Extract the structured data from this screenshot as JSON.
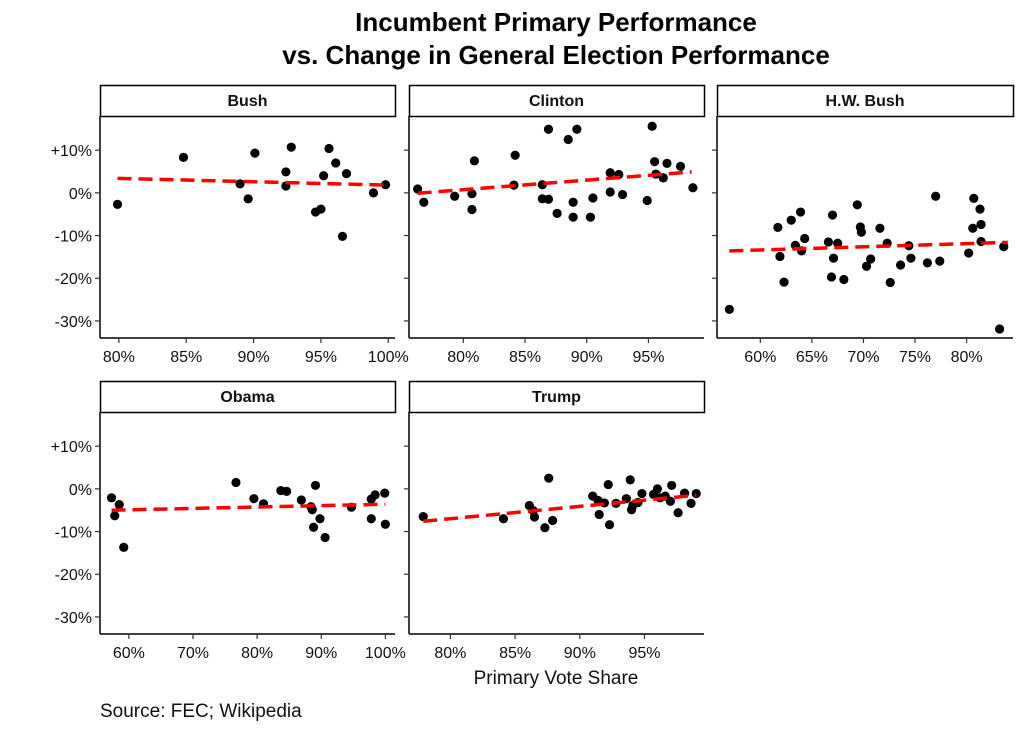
{
  "chart_data": {
    "type": "scatter",
    "title_lines": [
      "Incumbent Primary Performance",
      "vs. Change in General Election Performance"
    ],
    "xlabel": "Primary Vote Share",
    "ylabel": "",
    "caption": "Source: FEC; Wikipedia",
    "y_ticks": [
      10,
      0,
      -10,
      -20,
      -30
    ],
    "y_tick_labels": [
      "+10%",
      "0%",
      "-10%",
      "-20%",
      "-30%"
    ],
    "ylim": [
      -34,
      18
    ],
    "trend_color": "#ff0000",
    "point_color": "#000000",
    "panels": [
      {
        "name": "Bush",
        "xlim": [
          78.6,
          100.5
        ],
        "x_ticks": [
          80,
          85,
          90,
          95,
          100
        ],
        "x_tick_labels": [
          "80%",
          "85%",
          "90%",
          "95%",
          "100%"
        ],
        "trend": [
          [
            79.9,
            3.4
          ],
          [
            100,
            1.8
          ]
        ],
        "points": [
          [
            79.9,
            -2.7
          ],
          [
            84.8,
            8.3
          ],
          [
            89.0,
            2.1
          ],
          [
            89.6,
            -1.4
          ],
          [
            90.1,
            9.3
          ],
          [
            92.4,
            4.9
          ],
          [
            92.4,
            1.6
          ],
          [
            92.8,
            10.7
          ],
          [
            94.6,
            -4.5
          ],
          [
            95.0,
            -3.8
          ],
          [
            95.2,
            4.0
          ],
          [
            95.6,
            10.4
          ],
          [
            96.1,
            7.0
          ],
          [
            96.6,
            -10.2
          ],
          [
            96.9,
            4.5
          ],
          [
            98.9,
            0.0
          ],
          [
            99.8,
            1.9
          ]
        ]
      },
      {
        "name": "Clinton",
        "xlim": [
          75.6,
          99.5
        ],
        "x_ticks": [
          80,
          85,
          90,
          95
        ],
        "x_tick_labels": [
          "80%",
          "85%",
          "90%",
          "95%"
        ],
        "trend": [
          [
            76.3,
            -0.1
          ],
          [
            98.5,
            4.9
          ]
        ],
        "points": [
          [
            76.3,
            0.9
          ],
          [
            76.8,
            -2.2
          ],
          [
            79.3,
            -0.8
          ],
          [
            80.7,
            -0.2
          ],
          [
            80.7,
            -3.9
          ],
          [
            80.9,
            7.5
          ],
          [
            84.1,
            1.8
          ],
          [
            84.2,
            8.8
          ],
          [
            86.4,
            1.9
          ],
          [
            86.4,
            -1.4
          ],
          [
            86.9,
            14.9
          ],
          [
            86.9,
            -1.5
          ],
          [
            87.6,
            -4.8
          ],
          [
            88.5,
            12.5
          ],
          [
            88.9,
            -2.2
          ],
          [
            88.9,
            -5.7
          ],
          [
            89.2,
            14.9
          ],
          [
            90.3,
            -5.7
          ],
          [
            90.5,
            -1.2
          ],
          [
            91.9,
            4.7
          ],
          [
            91.9,
            0.2
          ],
          [
            92.6,
            4.3
          ],
          [
            92.9,
            -0.4
          ],
          [
            94.9,
            -1.8
          ],
          [
            95.3,
            15.6
          ],
          [
            95.5,
            7.3
          ],
          [
            95.6,
            4.4
          ],
          [
            96.2,
            3.5
          ],
          [
            96.5,
            6.9
          ],
          [
            97.6,
            6.2
          ],
          [
            98.6,
            1.2
          ]
        ]
      },
      {
        "name": "H.W. Bush",
        "xlim": [
          55.8,
          84.5
        ],
        "x_ticks": [
          60,
          65,
          70,
          75,
          80
        ],
        "x_tick_labels": [
          "60%",
          "65%",
          "70%",
          "75%",
          "80%"
        ],
        "trend": [
          [
            57.0,
            -13.6
          ],
          [
            84.0,
            -11.6
          ]
        ],
        "points": [
          [
            57.0,
            -27.3
          ],
          [
            61.7,
            -8.1
          ],
          [
            61.9,
            -14.9
          ],
          [
            62.3,
            -20.9
          ],
          [
            63.0,
            -6.4
          ],
          [
            63.4,
            -12.3
          ],
          [
            63.9,
            -4.5
          ],
          [
            64.0,
            -13.6
          ],
          [
            64.3,
            -10.7
          ],
          [
            66.6,
            -11.5
          ],
          [
            66.9,
            -19.7
          ],
          [
            67.0,
            -5.2
          ],
          [
            67.1,
            -15.3
          ],
          [
            67.5,
            -11.8
          ],
          [
            68.1,
            -20.3
          ],
          [
            69.4,
            -2.8
          ],
          [
            69.7,
            -8.0
          ],
          [
            69.8,
            -9.2
          ],
          [
            70.3,
            -17.2
          ],
          [
            70.7,
            -15.5
          ],
          [
            71.6,
            -8.3
          ],
          [
            72.3,
            -11.8
          ],
          [
            72.6,
            -21.0
          ],
          [
            73.6,
            -16.9
          ],
          [
            74.4,
            -12.4
          ],
          [
            74.6,
            -15.3
          ],
          [
            76.2,
            -16.4
          ],
          [
            77.0,
            -0.8
          ],
          [
            77.4,
            -16.0
          ],
          [
            80.2,
            -14.1
          ],
          [
            80.6,
            -8.3
          ],
          [
            80.7,
            -1.3
          ],
          [
            81.3,
            -3.8
          ],
          [
            81.4,
            -7.4
          ],
          [
            81.4,
            -11.4
          ],
          [
            83.2,
            -31.9
          ],
          [
            83.6,
            -12.6
          ]
        ]
      },
      {
        "name": "Obama",
        "xlim": [
          55.5,
          101.5
        ],
        "x_ticks": [
          60,
          70,
          80,
          90,
          100
        ],
        "x_tick_labels": [
          "60%",
          "70%",
          "80%",
          "90%",
          "100%"
        ],
        "trend": [
          [
            57.3,
            -5.0
          ],
          [
            100.0,
            -3.6
          ]
        ],
        "points": [
          [
            57.3,
            -2.1
          ],
          [
            57.8,
            -6.3
          ],
          [
            58.5,
            -3.7
          ],
          [
            59.2,
            -13.7
          ],
          [
            76.7,
            1.5
          ],
          [
            79.5,
            -2.3
          ],
          [
            81.0,
            -3.5
          ],
          [
            83.7,
            -0.4
          ],
          [
            84.6,
            -0.6
          ],
          [
            86.9,
            -2.6
          ],
          [
            88.4,
            -4.2
          ],
          [
            88.6,
            -4.9
          ],
          [
            88.8,
            -9.0
          ],
          [
            89.1,
            0.8
          ],
          [
            89.8,
            -7.0
          ],
          [
            90.6,
            -11.4
          ],
          [
            94.7,
            -4.3
          ],
          [
            97.8,
            -7.0
          ],
          [
            97.8,
            -2.4
          ],
          [
            98.4,
            -1.4
          ],
          [
            99.9,
            -1.0
          ],
          [
            100.0,
            -8.3
          ]
        ]
      },
      {
        "name": "Trump",
        "xlim": [
          76.8,
          99.6
        ],
        "x_ticks": [
          80,
          85,
          90,
          95
        ],
        "x_tick_labels": [
          "80%",
          "85%",
          "90%",
          "95%"
        ],
        "trend": [
          [
            77.9,
            -7.6
          ],
          [
            99.0,
            -1.5
          ]
        ],
        "points": [
          [
            77.9,
            -6.5
          ],
          [
            84.1,
            -7.0
          ],
          [
            86.1,
            -3.9
          ],
          [
            86.4,
            -5.1
          ],
          [
            86.5,
            -6.6
          ],
          [
            87.3,
            -9.1
          ],
          [
            87.6,
            2.5
          ],
          [
            87.9,
            -7.4
          ],
          [
            91.0,
            -1.7
          ],
          [
            91.4,
            -2.7
          ],
          [
            91.5,
            -6.0
          ],
          [
            91.9,
            -3.3
          ],
          [
            92.2,
            1.0
          ],
          [
            92.3,
            -8.4
          ],
          [
            92.8,
            -3.4
          ],
          [
            93.6,
            -2.3
          ],
          [
            93.9,
            2.1
          ],
          [
            94.0,
            -4.9
          ],
          [
            94.1,
            -3.9
          ],
          [
            94.5,
            -3.2
          ],
          [
            94.8,
            -1.1
          ],
          [
            95.7,
            -1.3
          ],
          [
            96.0,
            0.0
          ],
          [
            96.2,
            -2.1
          ],
          [
            96.6,
            -1.7
          ],
          [
            97.0,
            -2.9
          ],
          [
            97.1,
            0.8
          ],
          [
            97.6,
            -5.6
          ],
          [
            98.1,
            -1.0
          ],
          [
            98.6,
            -3.4
          ],
          [
            99.0,
            -1.1
          ]
        ]
      }
    ]
  }
}
